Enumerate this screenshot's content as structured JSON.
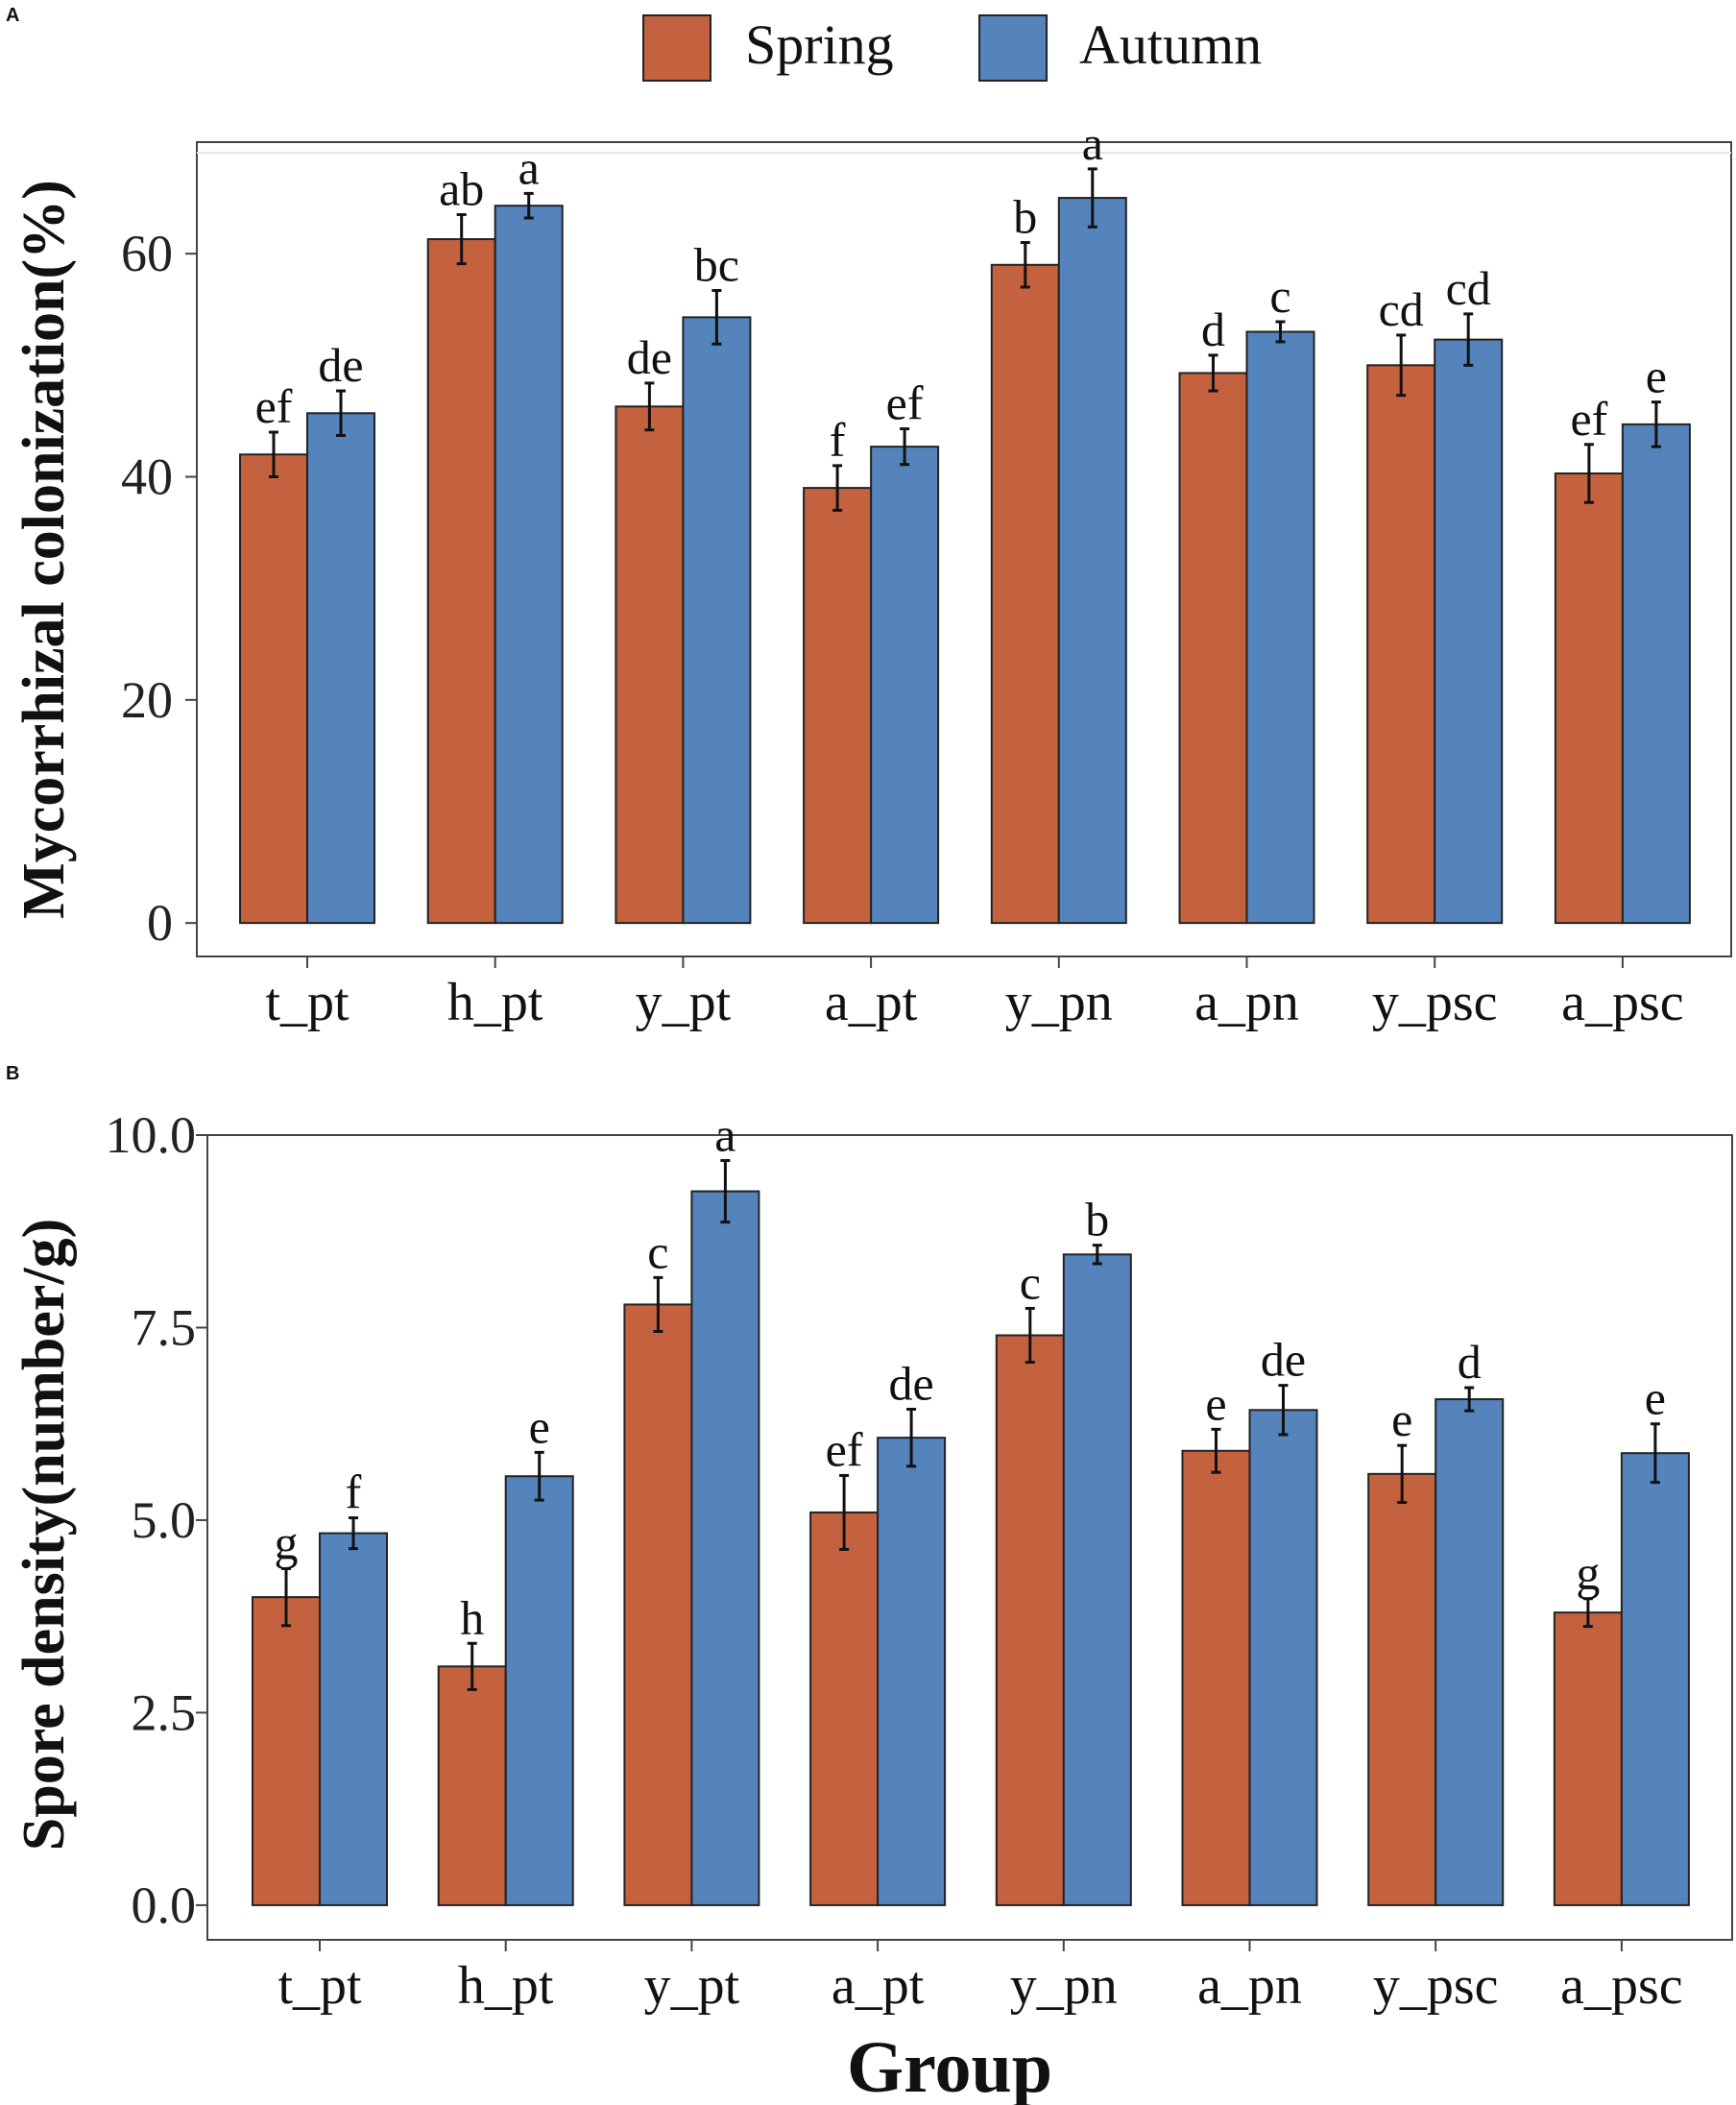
{
  "legend": {
    "items": [
      {
        "label": "Spring",
        "color": "#C4623F"
      },
      {
        "label": "Autumn",
        "color": "#5484BB"
      }
    ]
  },
  "x_axis_title": "Group",
  "chart_data": [
    {
      "type": "bar",
      "panel_label": "A",
      "title": "",
      "xlabel": "",
      "ylabel": "Mycorrhizal colonization(%)",
      "categories": [
        "t_pt",
        "h_pt",
        "y_pt",
        "a_pt",
        "y_pn",
        "a_pn",
        "y_psc",
        "a_psc"
      ],
      "ylim": [
        -3,
        70
      ],
      "yticks": [
        0,
        20,
        40,
        60
      ],
      "ytick_labels": [
        "0",
        "20",
        "40",
        "60"
      ],
      "grid": false,
      "legend_position": "top",
      "series": [
        {
          "name": "Spring",
          "values": [
            42.0,
            61.3,
            46.3,
            39.0,
            59.0,
            49.3,
            50.0,
            40.3
          ],
          "errors": [
            2.0,
            2.2,
            2.1,
            2.0,
            2.0,
            1.6,
            2.7,
            2.6
          ],
          "letters": [
            "ef",
            "ab",
            "de",
            "f",
            "b",
            "d",
            "cd",
            "ef"
          ]
        },
        {
          "name": "Autumn",
          "values": [
            45.7,
            64.3,
            54.3,
            42.7,
            65.0,
            53.0,
            52.3,
            44.7
          ],
          "errors": [
            2.0,
            1.1,
            2.4,
            1.6,
            2.6,
            0.9,
            2.3,
            2.0
          ],
          "letters": [
            "de",
            "a",
            "bc",
            "ef",
            "a",
            "c",
            "cd",
            "e"
          ]
        }
      ]
    },
    {
      "type": "bar",
      "panel_label": "B",
      "title": "",
      "xlabel": "Group",
      "ylabel": "Spore density(number/g)",
      "categories": [
        "t_pt",
        "h_pt",
        "y_pt",
        "a_pt",
        "y_pn",
        "a_pn",
        "y_psc",
        "a_psc"
      ],
      "ylim": [
        -0.45,
        10.0
      ],
      "yticks": [
        0.0,
        2.5,
        5.0,
        7.5,
        10.0
      ],
      "ytick_labels": [
        "0.0",
        "2.5",
        "5.0",
        "7.5",
        "10.0"
      ],
      "grid": false,
      "legend_position": "top",
      "series": [
        {
          "name": "Spring",
          "values": [
            4.0,
            3.1,
            7.8,
            5.1,
            7.4,
            5.9,
            5.6,
            3.8
          ],
          "errors": [
            0.37,
            0.3,
            0.35,
            0.48,
            0.35,
            0.28,
            0.37,
            0.18
          ],
          "letters": [
            "g",
            "h",
            "c",
            "ef",
            "c",
            "e",
            "e",
            "g"
          ]
        },
        {
          "name": "Autumn",
          "values": [
            4.83,
            5.57,
            9.27,
            6.07,
            8.45,
            6.43,
            6.57,
            5.87
          ],
          "errors": [
            0.2,
            0.31,
            0.4,
            0.37,
            0.12,
            0.32,
            0.15,
            0.38
          ],
          "letters": [
            "f",
            "e",
            "a",
            "de",
            "b",
            "de",
            "d",
            "e"
          ]
        }
      ]
    }
  ]
}
